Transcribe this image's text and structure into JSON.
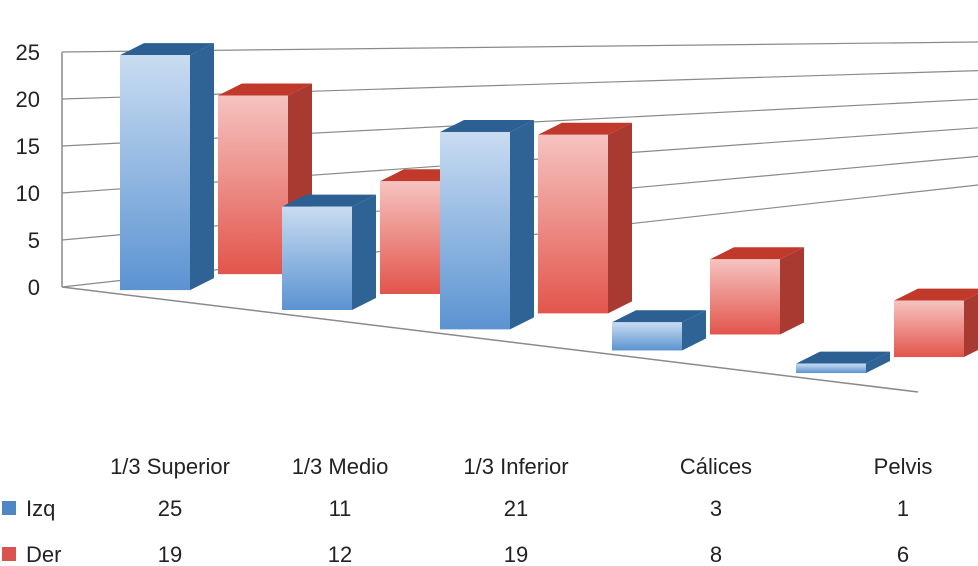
{
  "chart_data": {
    "type": "bar",
    "subtype": "3d-clustered-column",
    "title": "",
    "xlabel": "",
    "ylabel": "",
    "categories": [
      "1/3 Superior",
      "1/3 Medio",
      "1/3 Inferior",
      "Cálices",
      "Pelvis"
    ],
    "series": [
      {
        "name": "Izq",
        "values": [
          25,
          11,
          21,
          3,
          1
        ],
        "color": "#4f86c6"
      },
      {
        "name": "Der",
        "values": [
          19,
          12,
          19,
          8,
          6
        ],
        "color": "#d9534f"
      }
    ],
    "ylim": [
      0,
      25
    ],
    "yticks": [
      0,
      5,
      10,
      15,
      20,
      25
    ],
    "grid": true,
    "legend": "data-table-below"
  }
}
